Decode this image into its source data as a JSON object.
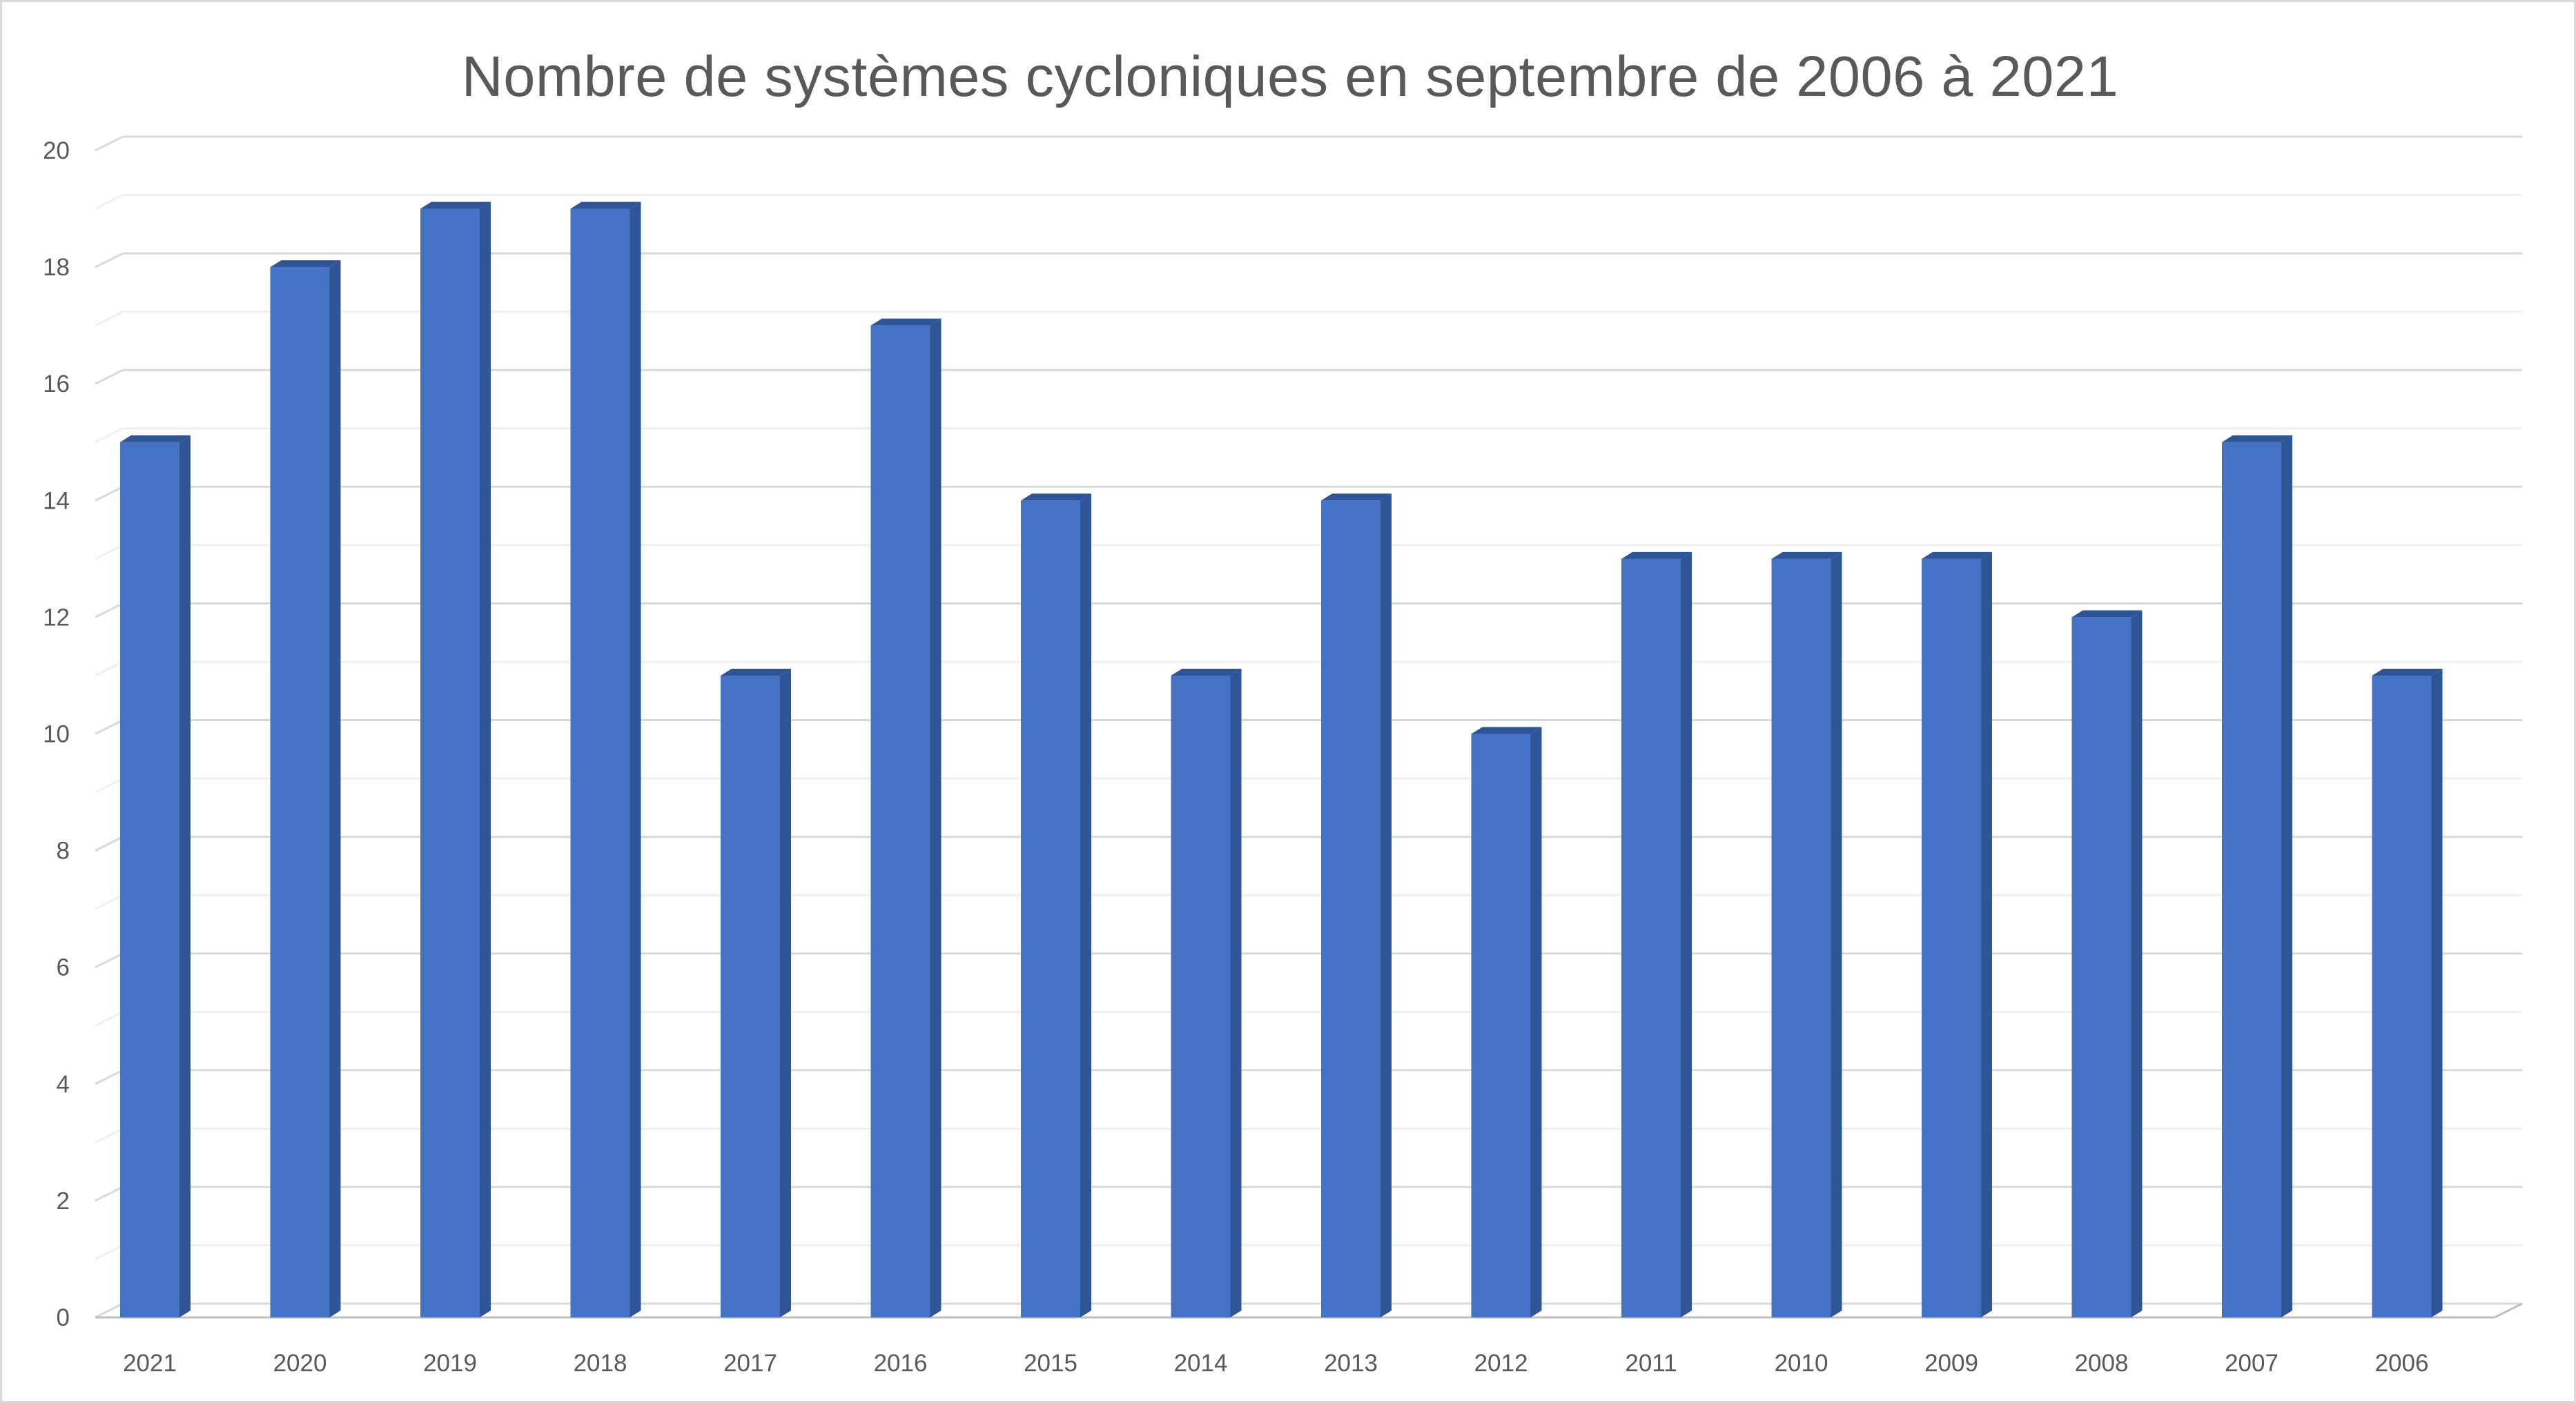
{
  "chart_data": {
    "type": "bar",
    "title": "Nombre de systèmes cycloniques en septembre de 2006 à 2021",
    "xlabel": "",
    "ylabel": "",
    "categories": [
      "2021",
      "2020",
      "2019",
      "2018",
      "2017",
      "2016",
      "2015",
      "2014",
      "2013",
      "2012",
      "2011",
      "2010",
      "2009",
      "2008",
      "2007",
      "2006"
    ],
    "values": [
      15,
      18,
      19,
      19,
      11,
      17,
      14,
      11,
      14,
      10,
      13,
      13,
      13,
      12,
      15,
      11
    ],
    "ylim": [
      0,
      20
    ],
    "yticks": [
      "0",
      "2",
      "4",
      "6",
      "8",
      "10",
      "12",
      "14",
      "16",
      "18",
      "20"
    ],
    "grid": true,
    "legend": "none",
    "colors": {
      "bar_front": "#4472c4",
      "bar_side": "#2f5597",
      "bar_top": "#2f5597",
      "grid_major": "#d9d9d9",
      "grid_minor": "#f0f0f0",
      "text": "#595959"
    }
  }
}
